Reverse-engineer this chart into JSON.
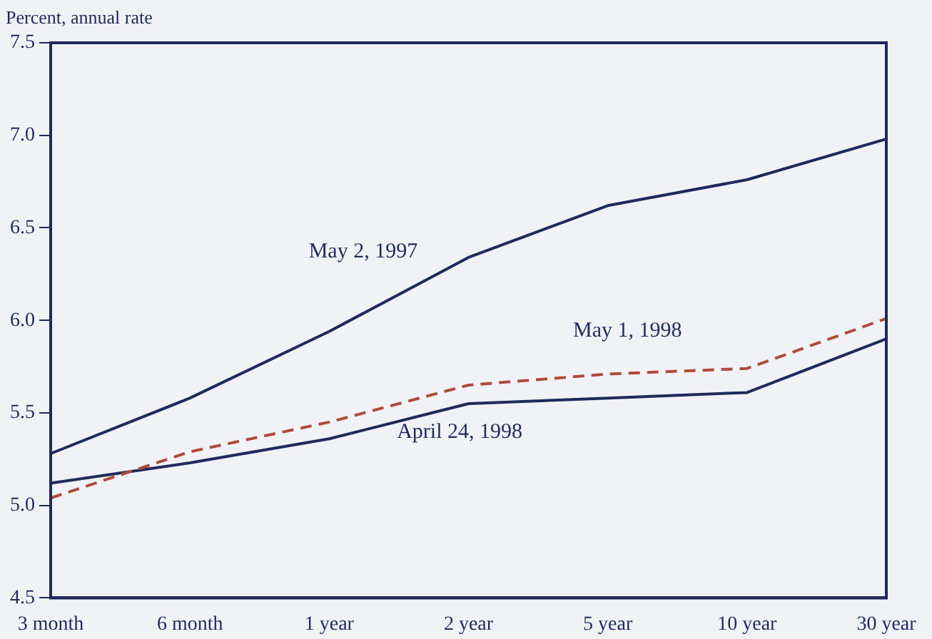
{
  "chart_data": {
    "type": "line",
    "ylabel": "Percent, annual rate",
    "categories": [
      "3 month",
      "6 month",
      "1 year",
      "2 year",
      "5 year",
      "10 year",
      "30 year"
    ],
    "series": [
      {
        "name": "May 2, 1997",
        "color": "#1f2a5c",
        "line_style": "solid",
        "values": [
          5.28,
          5.58,
          5.94,
          6.34,
          6.62,
          6.76,
          6.98
        ]
      },
      {
        "name": "May 1, 1998",
        "color": "#b04a3c",
        "line_style": "dashed",
        "values": [
          5.04,
          5.29,
          5.45,
          5.65,
          5.71,
          5.74,
          6.01
        ]
      },
      {
        "name": "April 24, 1998",
        "color": "#1f2a5c",
        "line_style": "solid",
        "values": [
          5.12,
          5.23,
          5.36,
          5.55,
          5.58,
          5.61,
          5.9
        ]
      }
    ],
    "ylim": [
      4.5,
      7.5
    ],
    "yticks": [
      {
        "value": 4.5,
        "label": "4.5"
      },
      {
        "value": 5,
        "label": "5.0"
      },
      {
        "value": 5.5,
        "label": "5.5"
      },
      {
        "value": 6,
        "label": "6.0"
      },
      {
        "value": 6.5,
        "label": "6.5"
      },
      {
        "value": 7,
        "label": "7.0"
      },
      {
        "value": 7.5,
        "label": "7.5"
      }
    ],
    "grid": false,
    "legend": false,
    "marker": "none"
  }
}
